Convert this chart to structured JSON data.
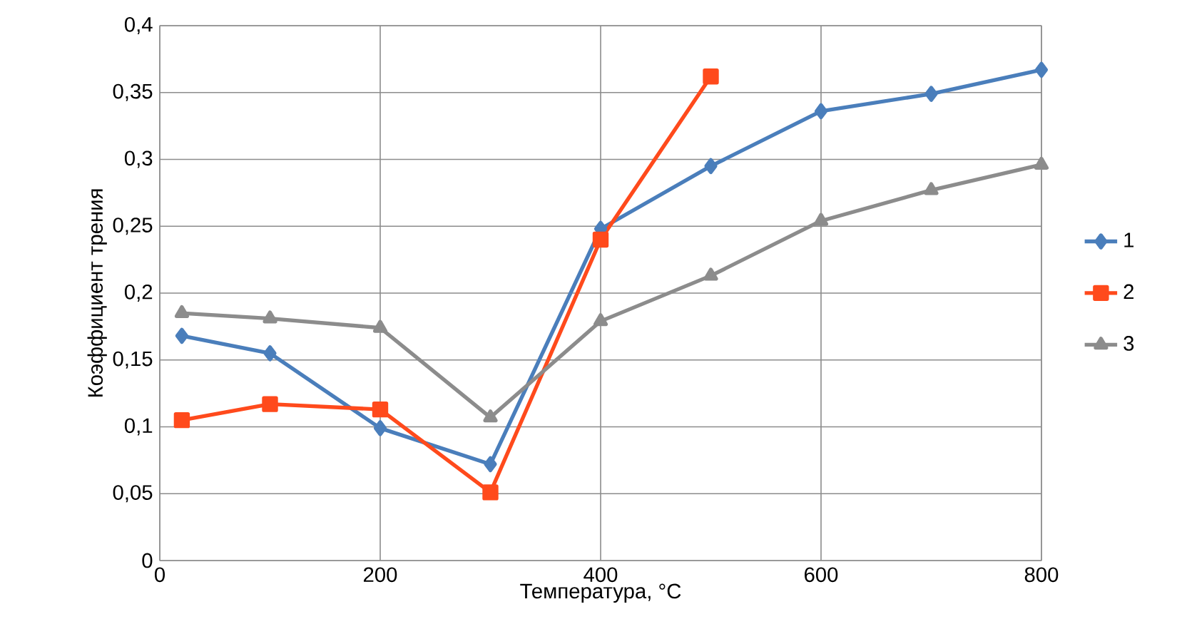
{
  "chart_data": {
    "type": "line",
    "xlabel": "Температура, °C",
    "ylabel": "Коэффициент трения",
    "xlim": [
      0,
      800
    ],
    "xticks": [
      0,
      200,
      400,
      600,
      800
    ],
    "ylim": [
      0,
      0.4
    ],
    "yticks": [
      {
        "value": 0,
        "label": "0"
      },
      {
        "value": 0.05,
        "label": "0,05"
      },
      {
        "value": 0.1,
        "label": "0,1"
      },
      {
        "value": 0.15,
        "label": "0,15"
      },
      {
        "value": 0.2,
        "label": "0,2"
      },
      {
        "value": 0.25,
        "label": "0,25"
      },
      {
        "value": 0.3,
        "label": "0,3"
      },
      {
        "value": 0.35,
        "label": "0,35"
      },
      {
        "value": 0.4,
        "label": "0,4"
      }
    ],
    "grid": true,
    "legend": "right",
    "line_style": "solid",
    "series": [
      {
        "name": "1",
        "color": "#4a7ebb",
        "marker": "diamond",
        "x": [
          20,
          100,
          200,
          300,
          400,
          500,
          600,
          700,
          800
        ],
        "values": [
          0.168,
          0.155,
          0.099,
          0.072,
          0.248,
          0.295,
          0.336,
          0.349,
          0.367
        ]
      },
      {
        "name": "2",
        "color": "#ff4a1c",
        "marker": "square",
        "x": [
          20,
          100,
          200,
          300,
          400,
          500
        ],
        "values": [
          0.105,
          0.117,
          0.113,
          0.051,
          0.24,
          0.362
        ]
      },
      {
        "name": "3",
        "color": "#8c8c8c",
        "marker": "triangle",
        "x": [
          20,
          100,
          200,
          300,
          400,
          500,
          600,
          700,
          800
        ],
        "values": [
          0.185,
          0.181,
          0.174,
          0.107,
          0.179,
          0.213,
          0.254,
          0.277,
          0.296
        ]
      }
    ]
  }
}
